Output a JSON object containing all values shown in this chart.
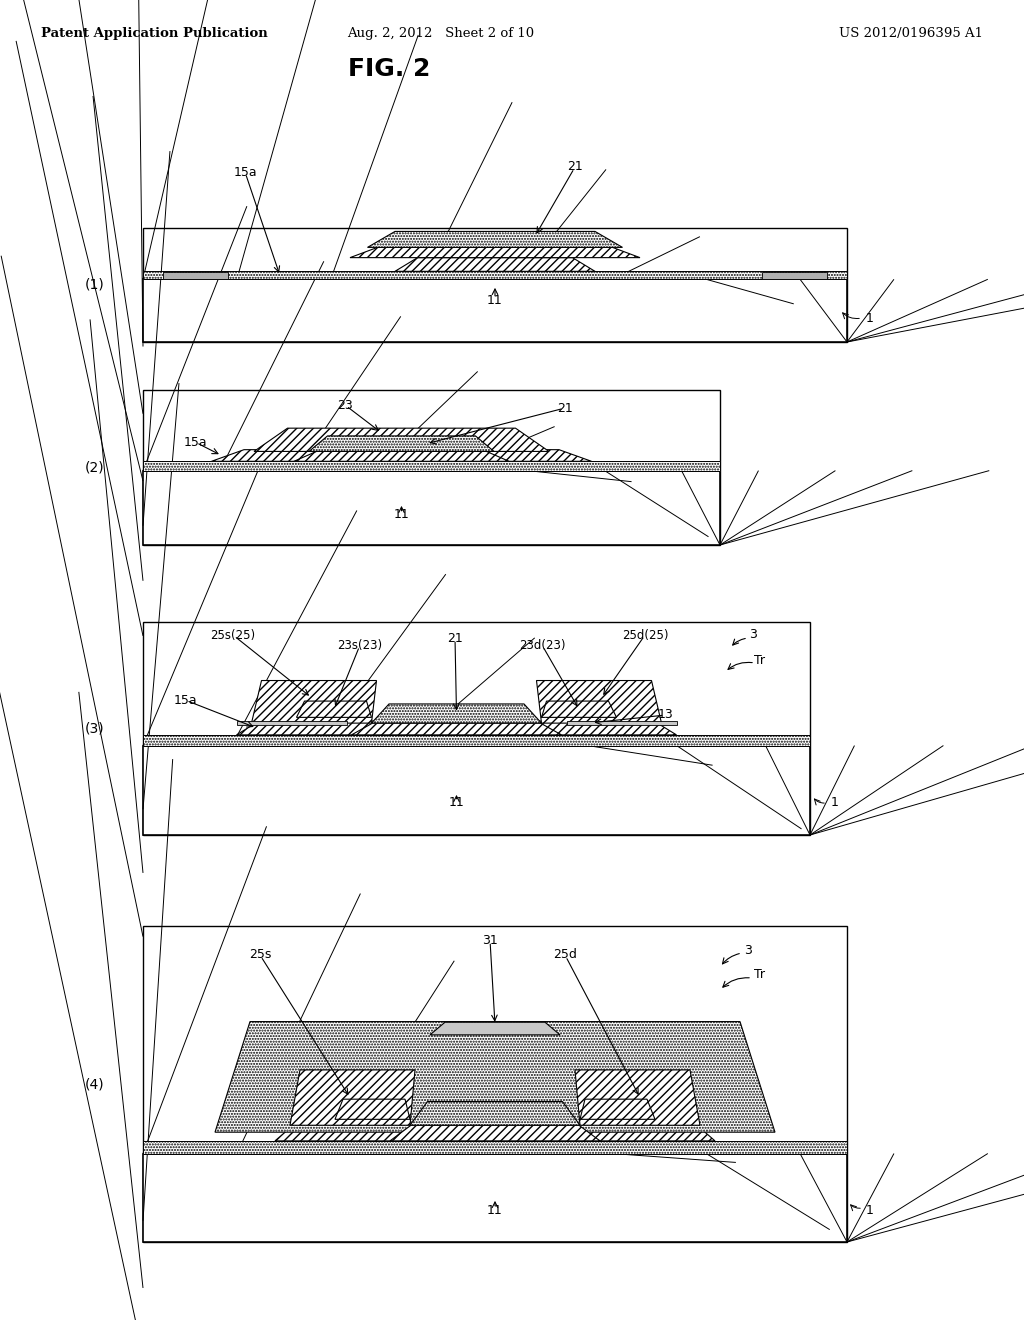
{
  "bg_color": "#ffffff",
  "header_left": "Patent Application Publication",
  "header_center": "Aug. 2, 2012   Sheet 2 of 10",
  "header_right": "US 2012/0196395 A1",
  "fig_title": "FIG. 2"
}
